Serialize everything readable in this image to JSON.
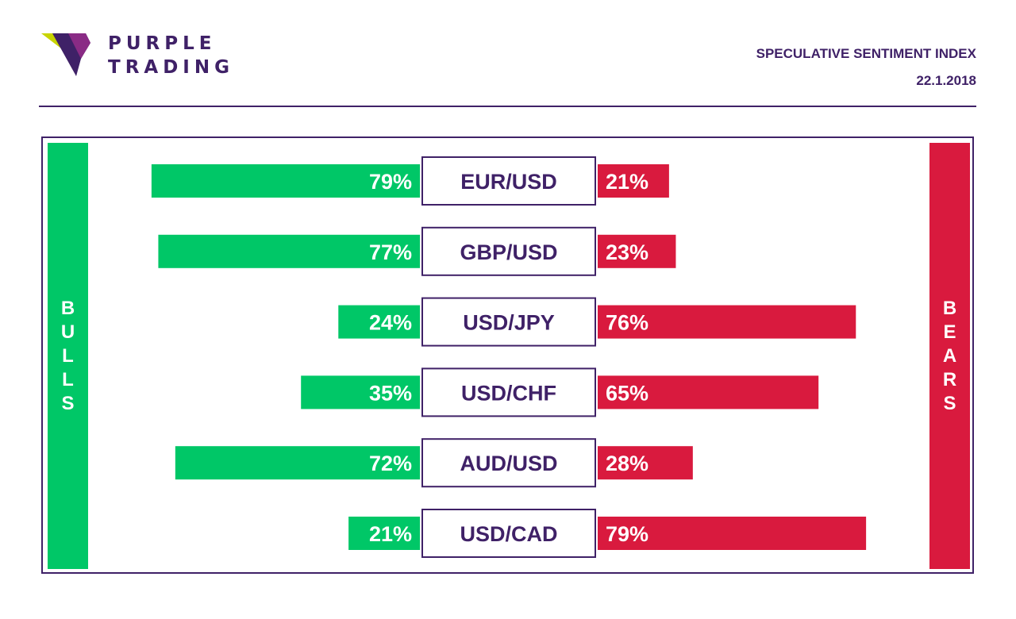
{
  "brand": {
    "line1": "PURPLE",
    "line2": "TRADING",
    "colors": {
      "purple": "#3f2167",
      "lime": "#c8d400",
      "magenta": "#8a2b85"
    }
  },
  "header": {
    "title": "SPECULATIVE SENTIMENT INDEX",
    "date": "22.1.2018"
  },
  "sides": {
    "bulls": "BULLS",
    "bears": "BEARS"
  },
  "colors": {
    "bulls": "#00c767",
    "bears": "#d91a3e",
    "frame": "#3f2167"
  },
  "chart_data": {
    "type": "bar",
    "orientation": "horizontal-diverging",
    "categories": [
      "EUR/USD",
      "GBP/USD",
      "USD/JPY",
      "USD/CHF",
      "AUD/USD",
      "USD/CAD"
    ],
    "series": [
      {
        "name": "BULLS",
        "values": [
          79,
          77,
          24,
          35,
          72,
          21
        ],
        "labels": [
          "79%",
          "77%",
          "24%",
          "35%",
          "72%",
          "21%"
        ]
      },
      {
        "name": "BEARS",
        "values": [
          21,
          23,
          76,
          65,
          28,
          79
        ],
        "labels": [
          "21%",
          "23%",
          "76%",
          "65%",
          "28%",
          "79%"
        ]
      }
    ],
    "unit": "%",
    "xlim": [
      0,
      100
    ]
  }
}
